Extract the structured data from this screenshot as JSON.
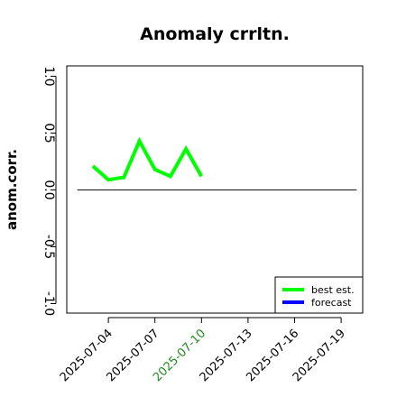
{
  "chart_data": {
    "type": "line",
    "title": "Anomaly crrltn.",
    "xlabel": "",
    "ylabel": "anom.corr.",
    "ylim": [
      -1.0,
      1.0
    ],
    "y_ticks": [
      -1.0,
      -0.5,
      0.0,
      0.5,
      1.0
    ],
    "y_tick_labels": [
      "-1.0",
      "-0.5",
      "0.0",
      "0.5",
      "1.0"
    ],
    "x_range": [
      "2025-07-01",
      "2025-07-21"
    ],
    "x_ticks": [
      "2025-07-04",
      "2025-07-07",
      "2025-07-10",
      "2025-07-13",
      "2025-07-16",
      "2025-07-19"
    ],
    "highlight_tick": "2025-07-10",
    "highlight_color": "#228B22",
    "reference_line": {
      "y": 0.0,
      "x_start": "2025-07-02",
      "x_end": "2025-07-20",
      "color": "#333333"
    },
    "series": [
      {
        "name": "best est.",
        "color": "#00ff00",
        "x": [
          "2025-07-03",
          "2025-07-04",
          "2025-07-05",
          "2025-07-06",
          "2025-07-07",
          "2025-07-08",
          "2025-07-09",
          "2025-07-10"
        ],
        "values": [
          0.21,
          0.09,
          0.11,
          0.43,
          0.18,
          0.12,
          0.36,
          0.12
        ]
      },
      {
        "name": "forecast",
        "color": "#0000ff",
        "x": [],
        "values": []
      }
    ],
    "legend_position": "bottom-right",
    "grid": false
  }
}
